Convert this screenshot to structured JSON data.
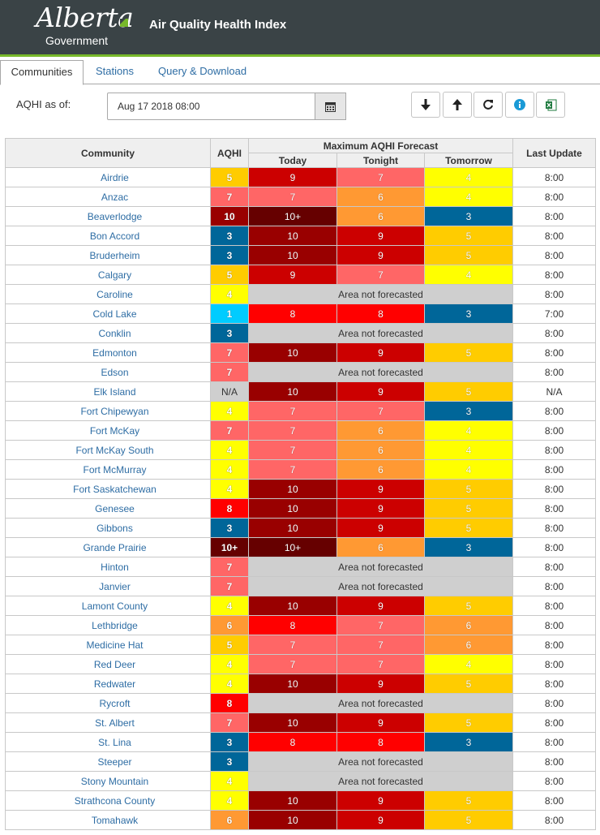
{
  "header": {
    "logo_word": "Alberta",
    "logo_sub": "Government",
    "app_title": "Air Quality Health Index"
  },
  "tabs": [
    {
      "label": "Communities",
      "active": true
    },
    {
      "label": "Stations",
      "active": false
    },
    {
      "label": "Query & Download",
      "active": false
    }
  ],
  "controls": {
    "aqhi_as_of_label": "AQHI as of:",
    "date_value": "Aug 17 2018 08:00",
    "buttons": [
      "sort-descending-icon",
      "sort-ascending-icon",
      "refresh-icon",
      "info-icon",
      "excel-export-icon"
    ]
  },
  "table": {
    "headers": {
      "community": "Community",
      "aqhi": "AQHI",
      "forecast_group": "Maximum AQHI Forecast",
      "today": "Today",
      "tonight": "Tonight",
      "tomorrow": "Tomorrow",
      "last_update": "Last Update"
    },
    "not_forecasted_text": "Area not forecasted",
    "level_colors": {
      "1": "#00ccff",
      "2": "#0099cc",
      "3": "#006699",
      "4": "#ffff00",
      "5": "#ffcc00",
      "6": "#ff9933",
      "7": "#ff6666",
      "8": "#ff0000",
      "9": "#cc0000",
      "10": "#990000",
      "10+": "#660000",
      "N/A": "#cfcfcf"
    },
    "rows": [
      {
        "community": "Airdrie",
        "aqhi": "5",
        "today": "9",
        "tonight": "7",
        "tomorrow": "4",
        "update": "8:00"
      },
      {
        "community": "Anzac",
        "aqhi": "7",
        "today": "7",
        "tonight": "6",
        "tomorrow": "4",
        "update": "8:00"
      },
      {
        "community": "Beaverlodge",
        "aqhi": "10",
        "today": "10+",
        "tonight": "6",
        "tomorrow": "3",
        "update": "8:00"
      },
      {
        "community": "Bon Accord",
        "aqhi": "3",
        "today": "10",
        "tonight": "9",
        "tomorrow": "5",
        "update": "8:00"
      },
      {
        "community": "Bruderheim",
        "aqhi": "3",
        "today": "10",
        "tonight": "9",
        "tomorrow": "5",
        "update": "8:00"
      },
      {
        "community": "Calgary",
        "aqhi": "5",
        "today": "9",
        "tonight": "7",
        "tomorrow": "4",
        "update": "8:00"
      },
      {
        "community": "Caroline",
        "aqhi": "4",
        "today": null,
        "tonight": null,
        "tomorrow": null,
        "update": "8:00"
      },
      {
        "community": "Cold Lake",
        "aqhi": "1",
        "today": "8",
        "tonight": "8",
        "tomorrow": "3",
        "update": "7:00"
      },
      {
        "community": "Conklin",
        "aqhi": "3",
        "today": null,
        "tonight": null,
        "tomorrow": null,
        "update": "8:00"
      },
      {
        "community": "Edmonton",
        "aqhi": "7",
        "today": "10",
        "tonight": "9",
        "tomorrow": "5",
        "update": "8:00"
      },
      {
        "community": "Edson",
        "aqhi": "7",
        "today": null,
        "tonight": null,
        "tomorrow": null,
        "update": "8:00"
      },
      {
        "community": "Elk Island",
        "aqhi": "N/A",
        "today": "10",
        "tonight": "9",
        "tomorrow": "5",
        "update": "N/A"
      },
      {
        "community": "Fort Chipewyan",
        "aqhi": "4",
        "today": "7",
        "tonight": "7",
        "tomorrow": "3",
        "update": "8:00"
      },
      {
        "community": "Fort McKay",
        "aqhi": "7",
        "today": "7",
        "tonight": "6",
        "tomorrow": "4",
        "update": "8:00"
      },
      {
        "community": "Fort McKay South",
        "aqhi": "4",
        "today": "7",
        "tonight": "6",
        "tomorrow": "4",
        "update": "8:00"
      },
      {
        "community": "Fort McMurray",
        "aqhi": "4",
        "today": "7",
        "tonight": "6",
        "tomorrow": "4",
        "update": "8:00"
      },
      {
        "community": "Fort Saskatchewan",
        "aqhi": "4",
        "today": "10",
        "tonight": "9",
        "tomorrow": "5",
        "update": "8:00"
      },
      {
        "community": "Genesee",
        "aqhi": "8",
        "today": "10",
        "tonight": "9",
        "tomorrow": "5",
        "update": "8:00"
      },
      {
        "community": "Gibbons",
        "aqhi": "3",
        "today": "10",
        "tonight": "9",
        "tomorrow": "5",
        "update": "8:00"
      },
      {
        "community": "Grande Prairie",
        "aqhi": "10+",
        "today": "10+",
        "tonight": "6",
        "tomorrow": "3",
        "update": "8:00"
      },
      {
        "community": "Hinton",
        "aqhi": "7",
        "today": null,
        "tonight": null,
        "tomorrow": null,
        "update": "8:00"
      },
      {
        "community": "Janvier",
        "aqhi": "7",
        "today": null,
        "tonight": null,
        "tomorrow": null,
        "update": "8:00"
      },
      {
        "community": "Lamont County",
        "aqhi": "4",
        "today": "10",
        "tonight": "9",
        "tomorrow": "5",
        "update": "8:00"
      },
      {
        "community": "Lethbridge",
        "aqhi": "6",
        "today": "8",
        "tonight": "7",
        "tomorrow": "6",
        "update": "8:00"
      },
      {
        "community": "Medicine Hat",
        "aqhi": "5",
        "today": "7",
        "tonight": "7",
        "tomorrow": "6",
        "update": "8:00"
      },
      {
        "community": "Red Deer",
        "aqhi": "4",
        "today": "7",
        "tonight": "7",
        "tomorrow": "4",
        "update": "8:00"
      },
      {
        "community": "Redwater",
        "aqhi": "4",
        "today": "10",
        "tonight": "9",
        "tomorrow": "5",
        "update": "8:00"
      },
      {
        "community": "Rycroft",
        "aqhi": "8",
        "today": null,
        "tonight": null,
        "tomorrow": null,
        "update": "8:00"
      },
      {
        "community": "St. Albert",
        "aqhi": "7",
        "today": "10",
        "tonight": "9",
        "tomorrow": "5",
        "update": "8:00"
      },
      {
        "community": "St. Lina",
        "aqhi": "3",
        "today": "8",
        "tonight": "8",
        "tomorrow": "3",
        "update": "8:00"
      },
      {
        "community": "Steeper",
        "aqhi": "3",
        "today": null,
        "tonight": null,
        "tomorrow": null,
        "update": "8:00"
      },
      {
        "community": "Stony Mountain",
        "aqhi": "4",
        "today": null,
        "tonight": null,
        "tomorrow": null,
        "update": "8:00"
      },
      {
        "community": "Strathcona County",
        "aqhi": "4",
        "today": "10",
        "tonight": "9",
        "tomorrow": "5",
        "update": "8:00"
      },
      {
        "community": "Tomahawk",
        "aqhi": "6",
        "today": "10",
        "tonight": "9",
        "tomorrow": "5",
        "update": "8:00"
      }
    ]
  }
}
